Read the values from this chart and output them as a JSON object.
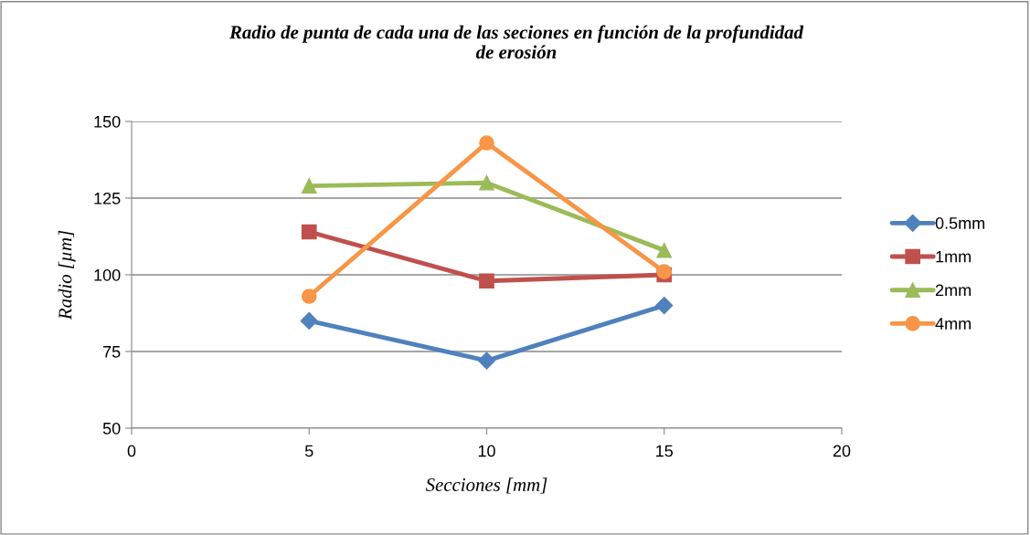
{
  "chart_data": {
    "type": "line",
    "title": "Radio de punta de cada una de las seciones en función de la profundidad\nde erosión",
    "xlabel": "Secciones [mm]",
    "ylabel": "Radio [µm]",
    "x": [
      5,
      10,
      15
    ],
    "xlim": [
      0,
      20
    ],
    "xticks": [
      0,
      5,
      10,
      15,
      20
    ],
    "ylim": [
      50,
      150
    ],
    "yticks": [
      50,
      75,
      100,
      125,
      150
    ],
    "grid": "y",
    "legend": "right",
    "series": [
      {
        "name": "0.5mm",
        "color": "#4f81bd",
        "marker": "diamond",
        "values": [
          85,
          72,
          90
        ]
      },
      {
        "name": "1mm",
        "color": "#c0504d",
        "marker": "square",
        "values": [
          114,
          98,
          100
        ]
      },
      {
        "name": "2mm",
        "color": "#9bbb59",
        "marker": "triangle",
        "values": [
          129,
          130,
          108
        ]
      },
      {
        "name": "4mm",
        "color": "#f79646",
        "marker": "circle",
        "values": [
          93,
          143,
          101
        ]
      }
    ]
  }
}
